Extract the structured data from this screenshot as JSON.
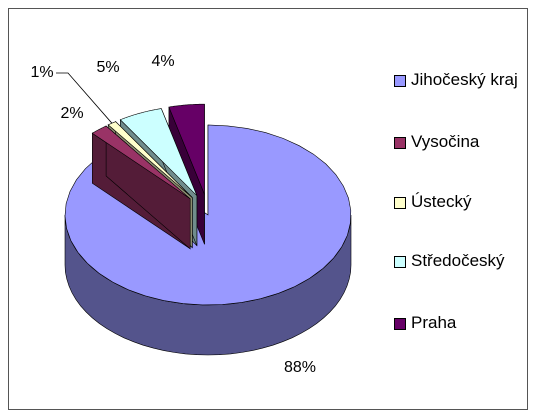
{
  "chart_data": {
    "type": "pie3d",
    "categories": [
      "Jihočeský kraj",
      "Vysočina",
      "Ústecký",
      "Středočeský",
      "Praha"
    ],
    "values": [
      88,
      2,
      1,
      5,
      4
    ],
    "value_labels": [
      "88%",
      "2%",
      "1%",
      "5%",
      "4%"
    ],
    "colors": [
      "#9999ff",
      "#993366",
      "#ffffcc",
      "#ccffff",
      "#660066"
    ],
    "legend": "right"
  }
}
